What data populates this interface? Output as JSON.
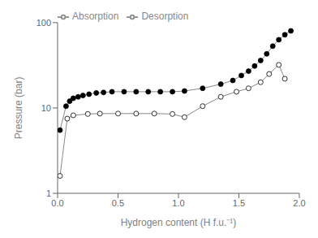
{
  "chart_data": {
    "type": "line",
    "xlabel": "Hydrogen content (H f.u.⁻¹)",
    "ylabel": "Pressure (bar)",
    "series": [
      {
        "name": "Absorption",
        "color": "#888888",
        "marker": "filled",
        "x": [
          0.02,
          0.07,
          0.1,
          0.13,
          0.17,
          0.21,
          0.26,
          0.32,
          0.38,
          0.45,
          0.55,
          0.65,
          0.75,
          0.85,
          0.95,
          1.05,
          1.2,
          1.35,
          1.45,
          1.52,
          1.58,
          1.63,
          1.68,
          1.73,
          1.78,
          1.83,
          1.88,
          1.93
        ],
        "values": [
          5.5,
          10.5,
          12.0,
          13.0,
          13.5,
          14.0,
          14.5,
          15.0,
          15.2,
          15.5,
          15.5,
          15.5,
          15.5,
          15.5,
          15.5,
          15.8,
          17.0,
          19.0,
          21.0,
          24.0,
          27.0,
          31.0,
          36.0,
          43.0,
          53.0,
          63.0,
          72.0,
          80.0
        ]
      },
      {
        "name": "Desorption",
        "color": "#888888",
        "marker": "open",
        "x": [
          0.02,
          0.08,
          0.13,
          0.25,
          0.35,
          0.5,
          0.65,
          0.8,
          0.95,
          1.05,
          1.2,
          1.35,
          1.48,
          1.58,
          1.68,
          1.75,
          1.83,
          1.88
        ],
        "values": [
          1.6,
          7.5,
          8.2,
          8.5,
          8.6,
          8.6,
          8.6,
          8.6,
          8.5,
          7.8,
          10.5,
          13.5,
          15.5,
          17.0,
          20.0,
          25.0,
          32.0,
          22.0
        ]
      }
    ],
    "xlim": [
      0.0,
      2.0
    ],
    "xticks": [
      {
        "value": 0,
        "label": "0.0"
      },
      0.5,
      {
        "value": 1,
        "label": "1.0"
      },
      1.5,
      {
        "value": 2,
        "label": "2.0"
      }
    ],
    "ylim": [
      1,
      100
    ],
    "yticks": [
      1,
      10,
      100
    ],
    "log": "y",
    "grid": false,
    "legend": "upper left"
  }
}
